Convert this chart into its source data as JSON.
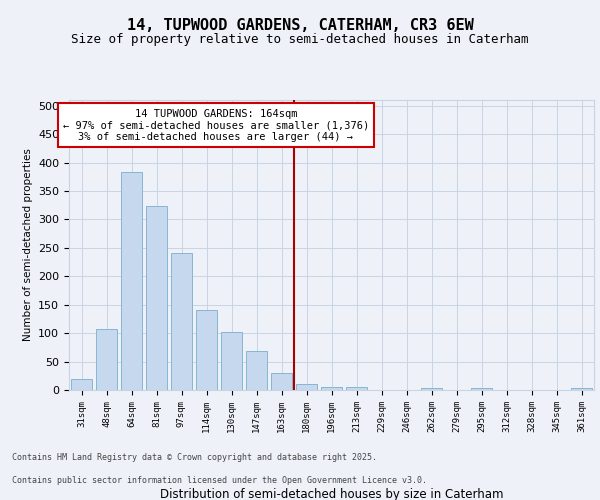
{
  "title": "14, TUPWOOD GARDENS, CATERHAM, CR3 6EW",
  "subtitle": "Size of property relative to semi-detached houses in Caterham",
  "xlabel": "Distribution of semi-detached houses by size in Caterham",
  "ylabel": "Number of semi-detached properties",
  "categories": [
    "31sqm",
    "48sqm",
    "64sqm",
    "81sqm",
    "97sqm",
    "114sqm",
    "130sqm",
    "147sqm",
    "163sqm",
    "180sqm",
    "196sqm",
    "213sqm",
    "229sqm",
    "246sqm",
    "262sqm",
    "279sqm",
    "295sqm",
    "312sqm",
    "328sqm",
    "345sqm",
    "361sqm"
  ],
  "values": [
    20,
    107,
    383,
    324,
    241,
    141,
    102,
    69,
    30,
    10,
    6,
    6,
    0,
    0,
    3,
    0,
    4,
    0,
    0,
    0,
    3
  ],
  "bar_color": "#c5d8ed",
  "bar_edge_color": "#7aaecd",
  "grid_color": "#c8d4e4",
  "vline_color": "#aa0000",
  "annotation_text": "14 TUPWOOD GARDENS: 164sqm\n← 97% of semi-detached houses are smaller (1,376)\n3% of semi-detached houses are larger (44) →",
  "annotation_box_color": "#cc0000",
  "ylim": [
    0,
    510
  ],
  "yticks": [
    0,
    50,
    100,
    150,
    200,
    250,
    300,
    350,
    400,
    450,
    500
  ],
  "footer_line1": "Contains HM Land Registry data © Crown copyright and database right 2025.",
  "footer_line2": "Contains public sector information licensed under the Open Government Licence v3.0.",
  "title_fontsize": 11,
  "subtitle_fontsize": 9,
  "bg_color": "#eef2f8"
}
